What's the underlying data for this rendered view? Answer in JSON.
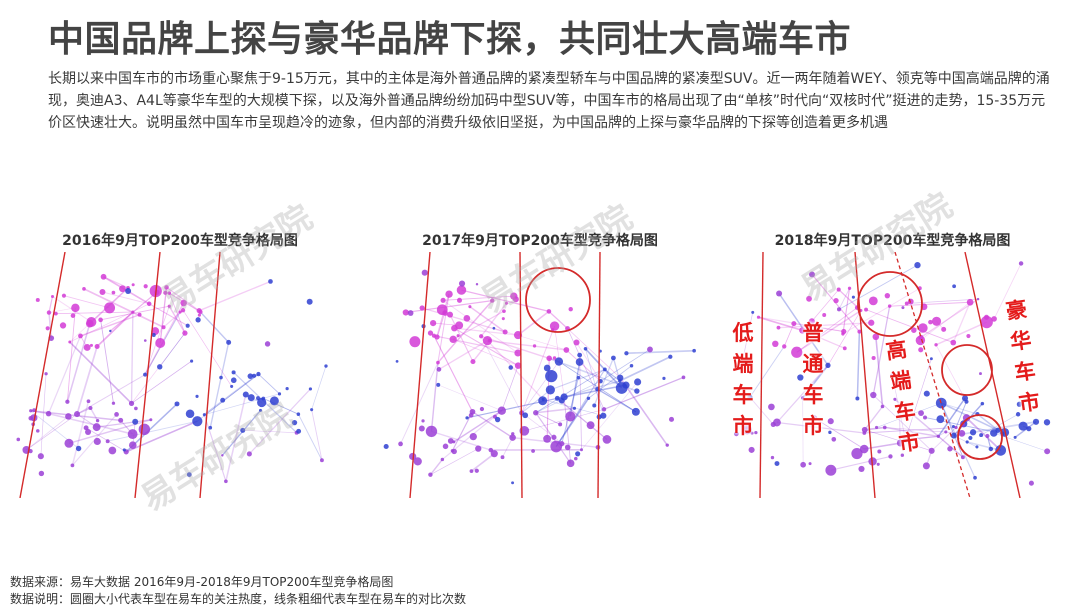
{
  "header": {
    "title": "中国品牌上探与豪华品牌下探，共同壮大高端车市",
    "intro": "长期以来中国车市的市场重心聚焦于9-15万元，其中的主体是海外普通品牌的紧凑型轿车与中国品牌的紧凑型SUV。近一两年随着WEY、领克等中国高端品牌的涌现，奥迪A3、A4L等豪华车型的大规模下探，以及海外普通品牌纷纷加码中型SUV等，中国车市的格局出现了由“单核”时代向“双核时代”挺进的走势，15-35万元价区快速壮大。说明虽然中国车市呈现趋冷的迹象，但内部的消费升级依旧坚挺，为中国品牌的上探与豪华品牌的下探等创造着更多机遇"
  },
  "panels": [
    {
      "title": "2016年9月TOP200车型竞争格局图"
    },
    {
      "title": "2017年9月TOP200车型竞争格局图"
    },
    {
      "title": "2018年9月TOP200车型竞争格局图"
    }
  ],
  "zone_labels": {
    "low_end": "低端车市",
    "regular": "普通车市",
    "high_end": "高端车市",
    "luxury": "豪华车市"
  },
  "watermark": "易车研究院",
  "footer": {
    "source": "数据来源：易车大数据   2016年9月-2018年9月TOP200车型竞争格局图",
    "note": "数据说明：圆圈大小代表车型在易车的关注热度，线条粗细代表车型在易车的对比次数"
  },
  "colors": {
    "divider": "#d42a2a",
    "node_purple": "#9b3fd6",
    "node_blue": "#2f3fd1",
    "node_magenta": "#d23bd6"
  }
}
